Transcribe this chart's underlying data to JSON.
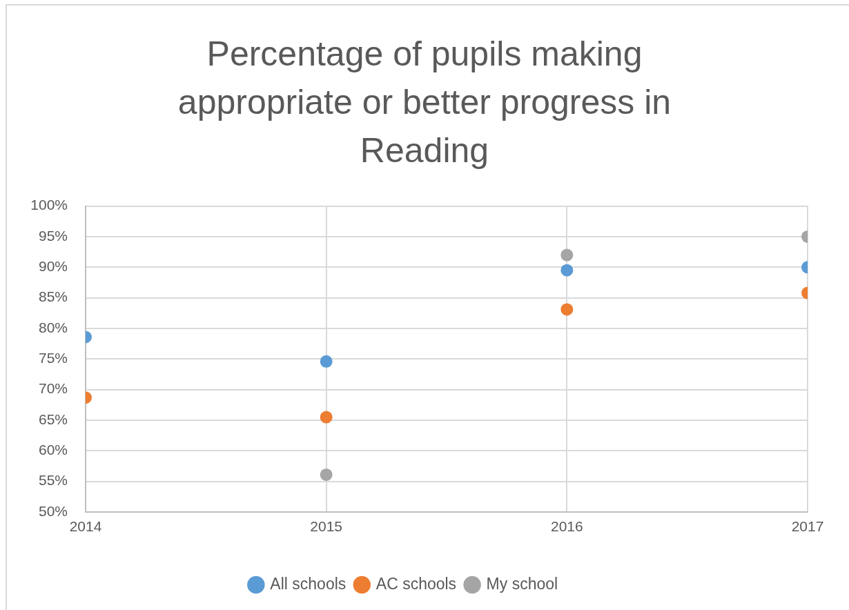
{
  "chart_data": {
    "type": "scatter",
    "title": "Percentage of pupils making appropriate or better progress in Reading",
    "x": [
      2014,
      2015,
      2016,
      2017
    ],
    "series": [
      {
        "name": "All schools",
        "color": "#5b9bd5",
        "values": [
          78.6,
          74.6,
          89.5,
          90.0
        ]
      },
      {
        "name": "AC schools",
        "color": "#ed7d31",
        "values": [
          68.7,
          65.5,
          83.1,
          85.8
        ]
      },
      {
        "name": "My school",
        "color": "#a5a5a5",
        "values": [
          null,
          56.1,
          92.0,
          95.0
        ]
      }
    ],
    "xlim": [
      2014,
      2017
    ],
    "xticks": [
      2014,
      2015,
      2016,
      2017
    ],
    "ylim": [
      50,
      100
    ],
    "yticks": [
      {
        "value": 50,
        "label": "50%"
      },
      {
        "value": 55,
        "label": "55%"
      },
      {
        "value": 60,
        "label": "60%"
      },
      {
        "value": 65,
        "label": "65%"
      },
      {
        "value": 70,
        "label": "70%"
      },
      {
        "value": 75,
        "label": "75%"
      },
      {
        "value": 80,
        "label": "80%"
      },
      {
        "value": 85,
        "label": "85%"
      },
      {
        "value": 90,
        "label": "90%"
      },
      {
        "value": 95,
        "label": "95%"
      },
      {
        "value": 100,
        "label": "100%"
      }
    ],
    "grid": true,
    "legend": "bottom",
    "marker": "circle"
  }
}
